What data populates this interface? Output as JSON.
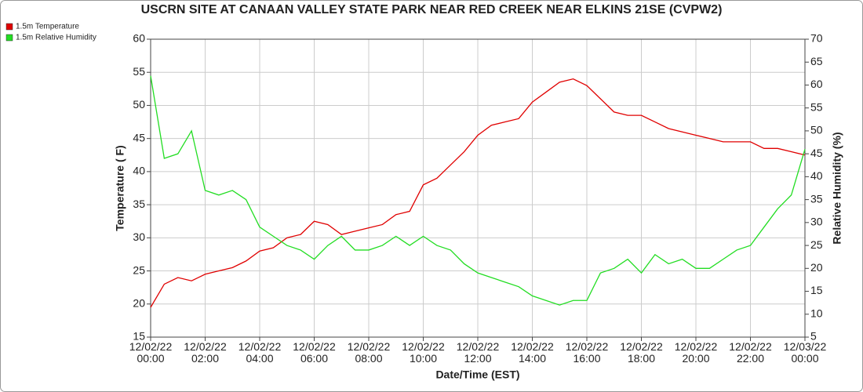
{
  "chart_data": {
    "type": "line",
    "title": "USCRN SITE AT CANAAN VALLEY STATE PARK NEAR RED CREEK NEAR ELKINS 21SE (CVPW2)",
    "x_label": "Date/Time (EST)",
    "y_label": "Temperature ( F)",
    "y2_label": "Relative Humidity (%)",
    "x": [
      "12/02/22 00:00",
      "12/02/22 00:30",
      "12/02/22 01:00",
      "12/02/22 01:30",
      "12/02/22 02:00",
      "12/02/22 02:30",
      "12/02/22 03:00",
      "12/02/22 03:30",
      "12/02/22 04:00",
      "12/02/22 04:30",
      "12/02/22 05:00",
      "12/02/22 05:30",
      "12/02/22 06:00",
      "12/02/22 06:30",
      "12/02/22 07:00",
      "12/02/22 07:30",
      "12/02/22 08:00",
      "12/02/22 08:30",
      "12/02/22 09:00",
      "12/02/22 09:30",
      "12/02/22 10:00",
      "12/02/22 10:30",
      "12/02/22 11:00",
      "12/02/22 11:30",
      "12/02/22 12:00",
      "12/02/22 12:30",
      "12/02/22 13:00",
      "12/02/22 13:30",
      "12/02/22 14:00",
      "12/02/22 14:30",
      "12/02/22 15:00",
      "12/02/22 15:30",
      "12/02/22 16:00",
      "12/02/22 16:30",
      "12/02/22 17:00",
      "12/02/22 17:30",
      "12/02/22 18:00",
      "12/02/22 18:30",
      "12/02/22 19:00",
      "12/02/22 19:30",
      "12/02/22 20:00",
      "12/02/22 20:30",
      "12/02/22 21:00",
      "12/02/22 21:30",
      "12/02/22 22:00",
      "12/02/22 22:30",
      "12/02/22 23:00",
      "12/02/22 23:30",
      "12/03/22 00:00"
    ],
    "series": [
      {
        "name": "1.5m Temperature",
        "color": "#e00000",
        "values": [
          19.5,
          23,
          24,
          23.5,
          24.5,
          25,
          25.5,
          26.5,
          28,
          28.5,
          30,
          30.5,
          32.5,
          32,
          30.5,
          31,
          31.5,
          32,
          33.5,
          34,
          38,
          39,
          41,
          43,
          45.5,
          47,
          47.5,
          48,
          50.5,
          52,
          53.5,
          54,
          53,
          51,
          49,
          48.5,
          48.5,
          47.5,
          46.5,
          46,
          45.5,
          45,
          44.5,
          44.5,
          44.5,
          43.5,
          43.5,
          43,
          42.5
        ]
      },
      {
        "name": "1.5m Relative Humidity",
        "color": "#22dd22",
        "axis": "y2",
        "values": [
          62,
          44,
          45,
          50,
          37,
          36,
          37,
          35,
          29,
          27,
          25,
          24,
          22,
          25,
          27,
          24,
          24,
          25,
          27,
          25,
          27,
          25,
          24,
          21,
          19,
          18,
          17,
          16,
          14,
          13,
          12,
          13,
          13,
          19,
          20,
          22,
          19,
          23,
          21,
          22,
          20,
          20,
          22,
          24,
          25,
          29,
          33,
          36,
          46
        ]
      }
    ],
    "xlim": [
      "12/02/22 00:00",
      "12/03/22 00:00"
    ],
    "xticks": [
      "12/02/22 00:00",
      "12/02/22 02:00",
      "12/02/22 04:00",
      "12/02/22 06:00",
      "12/02/22 08:00",
      "12/02/22 10:00",
      "12/02/22 12:00",
      "12/02/22 14:00",
      "12/02/22 16:00",
      "12/02/22 18:00",
      "12/02/22 20:00",
      "12/02/22 22:00",
      "12/03/22 00:00"
    ],
    "ylim": [
      15,
      60
    ],
    "yticks": [
      15,
      20,
      25,
      30,
      35,
      40,
      45,
      50,
      55,
      60
    ],
    "y2lim": [
      5,
      70
    ],
    "y2ticks": [
      5,
      10,
      15,
      20,
      25,
      30,
      35,
      40,
      45,
      50,
      55,
      60,
      65,
      70
    ],
    "grid": true,
    "legend": "top-left"
  }
}
